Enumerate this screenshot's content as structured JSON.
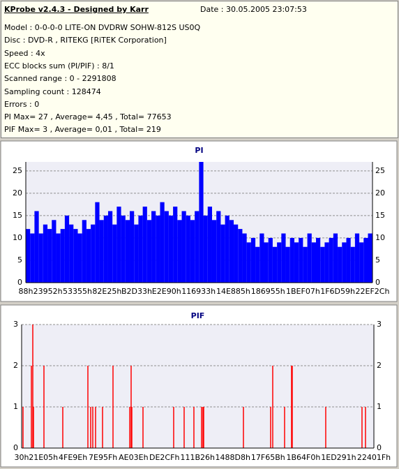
{
  "header": {
    "title": "KProbe v2.4.3 - Designed by Karr",
    "date": "Date : 30.05.2005 23:07:53",
    "lines": [
      "Model : 0-0-0-0 LITE-ON DVDRW SOHW-812S  US0Q",
      "Disc : DVD-R , RITEKG [RiTEK Corporation]",
      "Speed : 4x",
      "ECC blocks sum (PI/PIF) : 8/1",
      "Scanned range : 0 - 2291808",
      "Sampling count : 128474",
      "Errors : 0",
      "PI Max= 27 , Average= 4,45 , Total= 77653",
      "PIF Max= 3 , Average= 0,01 , Total= 219"
    ]
  },
  "chart_data": [
    {
      "type": "bar",
      "title": "PI",
      "color": "#0000ff",
      "grid": true,
      "xlim": [
        136,
        2289452
      ],
      "xticks": [
        {
          "value": 136,
          "label": "88h"
        },
        {
          "value": 145746,
          "label": "23952h"
        },
        {
          "value": 340821,
          "label": "53355h"
        },
        {
          "value": 536101,
          "label": "82E25h"
        },
        {
          "value": 732467,
          "label": "B2D33h"
        },
        {
          "value": 929424,
          "label": "E2E90h"
        },
        {
          "value": 1141043,
          "label": "116933h"
        },
        {
          "value": 1370245,
          "label": "14E885h"
        },
        {
          "value": 1599829,
          "label": "186955h"
        },
        {
          "value": 1830663,
          "label": "1BEF07h"
        },
        {
          "value": 2059609,
          "label": "1F6D59h"
        },
        {
          "value": 2289452,
          "label": "22EF2Ch"
        }
      ],
      "ylim": [
        0,
        27
      ],
      "yticks": [
        0,
        5,
        10,
        15,
        20,
        25
      ],
      "x": [
        136,
        28736,
        57336,
        85936,
        114536,
        143136,
        171736,
        200336,
        228936,
        257536,
        286136,
        314736,
        343336,
        371936,
        400536,
        429136,
        457736,
        486336,
        514936,
        543536,
        572136,
        600736,
        629336,
        657936,
        686536,
        715136,
        743736,
        772336,
        800936,
        829536,
        858136,
        886736,
        915336,
        943936,
        972536,
        1001136,
        1029736,
        1058336,
        1086936,
        1115536,
        1144136,
        1172736,
        1201336,
        1229936,
        1258536,
        1287136,
        1315736,
        1344336,
        1372936,
        1401536,
        1430136,
        1458736,
        1487336,
        1515936,
        1544536,
        1573136,
        1601736,
        1630336,
        1658936,
        1687536,
        1716136,
        1744736,
        1773336,
        1801936,
        1830536,
        1859136,
        1887736,
        1916336,
        1944936,
        1973536,
        2002136,
        2030736,
        2059336,
        2087936,
        2116536,
        2145136,
        2173736,
        2202336,
        2230936,
        2259536
      ],
      "values": [
        12,
        11,
        16,
        11,
        13,
        12,
        14,
        11,
        12,
        15,
        13,
        12,
        11,
        14,
        12,
        13,
        18,
        14,
        15,
        16,
        13,
        17,
        15,
        14,
        16,
        13,
        15,
        17,
        14,
        16,
        15,
        18,
        16,
        15,
        17,
        14,
        16,
        15,
        14,
        16,
        27,
        15,
        17,
        14,
        16,
        13,
        15,
        14,
        13,
        12,
        11,
        9,
        10,
        8,
        11,
        9,
        10,
        8,
        9,
        11,
        8,
        10,
        9,
        10,
        8,
        11,
        9,
        10,
        8,
        9,
        10,
        11,
        8,
        9,
        10,
        8,
        11,
        9,
        10,
        11
      ]
    },
    {
      "type": "spike",
      "title": "PIF",
      "color": "#ff0000",
      "grid": true,
      "xlim": [
        48,
        2244639
      ],
      "xticks": [
        {
          "value": 48,
          "label": "30h"
        },
        {
          "value": 138757,
          "label": "21E05h"
        },
        {
          "value": 327326,
          "label": "4FE9Eh"
        },
        {
          "value": 518495,
          "label": "7E95Fh"
        },
        {
          "value": 712766,
          "label": "AE03Eh"
        },
        {
          "value": 910031,
          "label": "DE2CFh"
        },
        {
          "value": 1121062,
          "label": "111B26h"
        },
        {
          "value": 1345752,
          "label": "1488D8h"
        },
        {
          "value": 1570395,
          "label": "17F65Bh"
        },
        {
          "value": 1795312,
          "label": "1B64F0h"
        },
        {
          "value": 2019985,
          "label": "1ED291h"
        },
        {
          "value": 2244639,
          "label": "22401Fh"
        }
      ],
      "ylim": [
        0,
        3
      ],
      "yticks": [
        0,
        1,
        2,
        3
      ],
      "x": [
        8900,
        62270,
        71160,
        75600,
        142270,
        262270,
        422270,
        440000,
        453380,
        471160,
        515600,
        582270,
        688900,
        697780,
        702220,
        773380,
        968890,
        1035560,
        1097780,
        1146670,
        1155560,
        1160000,
        1413380,
        1586670,
        1600000,
        1675560,
        1720000,
        1724440,
        1937780,
        2168890,
        2191110
      ],
      "values": [
        1,
        2,
        3,
        1,
        2,
        1,
        2,
        1,
        1,
        1,
        1,
        2,
        1,
        2,
        1,
        1,
        1,
        1,
        1,
        1,
        1,
        1,
        1,
        1,
        2,
        1,
        2,
        2,
        1,
        1,
        1
      ]
    }
  ]
}
